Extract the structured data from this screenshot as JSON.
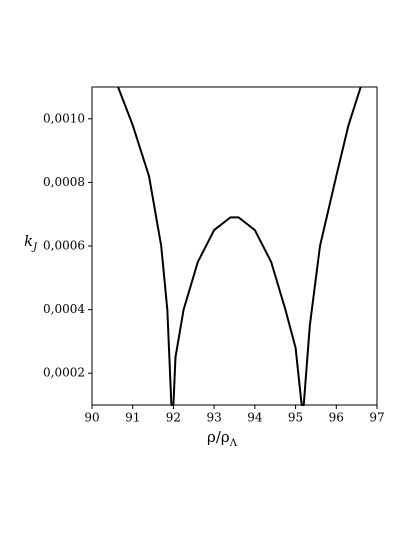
{
  "chart_data": {
    "type": "line",
    "xlabel": "ρ/ρ",
    "xlabel_sub": "Λ",
    "ylabel": "k",
    "ylabel_sub": "J",
    "xlim": [
      90,
      97
    ],
    "xticks": [
      90,
      91,
      92,
      93,
      94,
      95,
      96,
      97
    ],
    "ylim": [
      0.0001,
      0.0011
    ],
    "yticks": [
      {
        "value": 0.0002,
        "label": "0,0002"
      },
      {
        "value": 0.0004,
        "label": "0,0004"
      },
      {
        "value": 0.0006,
        "label": "0,0006"
      },
      {
        "value": 0.0008,
        "label": "0,0008"
      },
      {
        "value": 0.001,
        "label": "0,0010"
      }
    ],
    "series": [
      {
        "color": "#000000",
        "x": [
          90.64,
          91.0,
          91.4,
          91.7,
          91.85,
          91.95,
          92.0,
          92.05,
          92.25,
          92.6,
          93.0,
          93.4,
          93.6,
          94.0,
          94.4,
          94.75,
          95.0,
          95.15,
          95.2,
          95.35,
          95.6,
          96.0,
          96.3,
          96.6
        ],
        "values": [
          0.0011,
          0.00098,
          0.00082,
          0.0006,
          0.0004,
          0.0001,
          0.0001,
          0.00025,
          0.0004,
          0.00055,
          0.00065,
          0.00069,
          0.00069,
          0.00065,
          0.00055,
          0.0004,
          0.00028,
          0.0001,
          0.0001,
          0.00035,
          0.0006,
          0.00082,
          0.00098,
          0.0011
        ]
      }
    ]
  }
}
